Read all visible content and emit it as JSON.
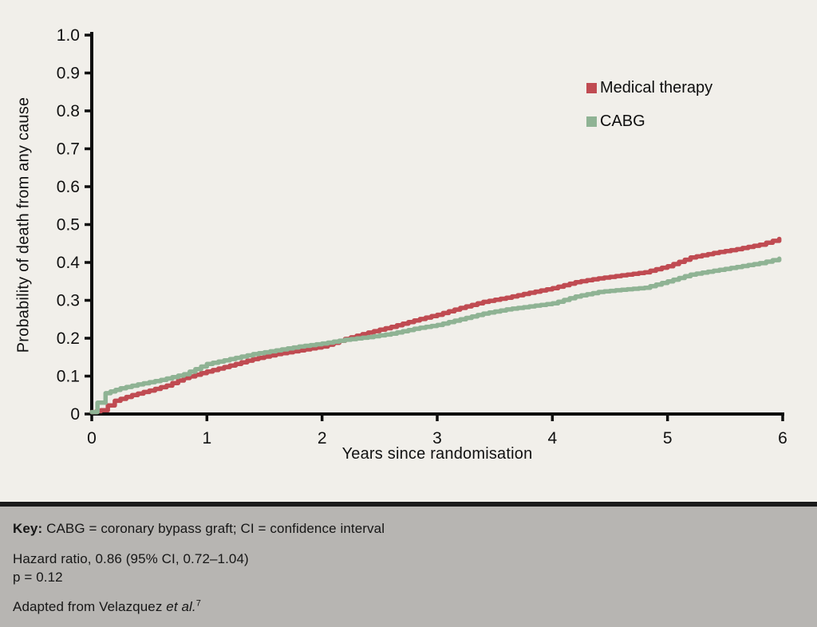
{
  "figure": {
    "background_color": "#f1efea",
    "footer_background_color": "#b7b5b2",
    "separator_color": "#1b1b1b",
    "axis_color": "#0d0d0d",
    "text_color": "#111111"
  },
  "chart_data": {
    "type": "line",
    "subtype": "kaplan-meier-step",
    "title": "",
    "xlabel": "Years since randomisation",
    "ylabel": "Probability of death from any cause",
    "xlim": [
      0,
      6
    ],
    "ylim": [
      0,
      1.0
    ],
    "x_ticks": [
      "0",
      "1",
      "2",
      "3",
      "4",
      "5",
      "6"
    ],
    "y_ticks": [
      "1.0",
      "0.9",
      "0.8",
      "0.7",
      "0.6",
      "0.5",
      "0.4",
      "0.3",
      "0.2",
      "0.1",
      "0"
    ],
    "grid": false,
    "legend_position": "upper right",
    "series": [
      {
        "name": "Medical therapy",
        "color": "#c04b52",
        "x": [
          0,
          0.08,
          0.2,
          0.35,
          0.5,
          0.65,
          0.8,
          1.0,
          1.2,
          1.4,
          1.6,
          1.8,
          2.0,
          2.2,
          2.4,
          2.6,
          2.8,
          3.0,
          3.2,
          3.4,
          3.6,
          3.8,
          4.0,
          4.2,
          4.4,
          4.6,
          4.8,
          5.0,
          5.2,
          5.4,
          5.6,
          5.8,
          5.97
        ],
        "y": [
          0.005,
          0.01,
          0.035,
          0.05,
          0.062,
          0.075,
          0.095,
          0.112,
          0.128,
          0.145,
          0.158,
          0.168,
          0.178,
          0.198,
          0.215,
          0.23,
          0.247,
          0.262,
          0.28,
          0.296,
          0.307,
          0.32,
          0.332,
          0.348,
          0.358,
          0.366,
          0.374,
          0.39,
          0.413,
          0.425,
          0.435,
          0.447,
          0.462
        ]
      },
      {
        "name": "CABG",
        "color": "#8fb394",
        "x": [
          0,
          0.05,
          0.12,
          0.25,
          0.4,
          0.6,
          0.8,
          1.0,
          1.2,
          1.4,
          1.6,
          1.8,
          2.0,
          2.2,
          2.4,
          2.6,
          2.8,
          3.0,
          3.2,
          3.4,
          3.6,
          3.8,
          4.0,
          4.2,
          4.4,
          4.6,
          4.8,
          5.0,
          5.2,
          5.4,
          5.6,
          5.8,
          5.97
        ],
        "y": [
          0.005,
          0.03,
          0.055,
          0.068,
          0.078,
          0.09,
          0.105,
          0.132,
          0.145,
          0.158,
          0.168,
          0.178,
          0.186,
          0.196,
          0.203,
          0.212,
          0.225,
          0.235,
          0.25,
          0.265,
          0.276,
          0.284,
          0.292,
          0.31,
          0.322,
          0.328,
          0.333,
          0.35,
          0.368,
          0.378,
          0.388,
          0.398,
          0.41
        ]
      }
    ]
  },
  "legend": {
    "items": [
      {
        "label": "Medical therapy",
        "color": "#c04b52"
      },
      {
        "label": "CABG",
        "color": "#8fb394"
      }
    ]
  },
  "footer": {
    "key_label": "Key:",
    "key_text": " CABG = coronary bypass graft; CI = confidence interval",
    "hazard_line": "Hazard ratio, 0.86 (95% CI, 0.72–1.04)",
    "p_line": "p = 0.12",
    "adapted_prefix": "Adapted from Velazquez ",
    "adapted_italic": "et al.",
    "adapted_superscript": "7"
  }
}
